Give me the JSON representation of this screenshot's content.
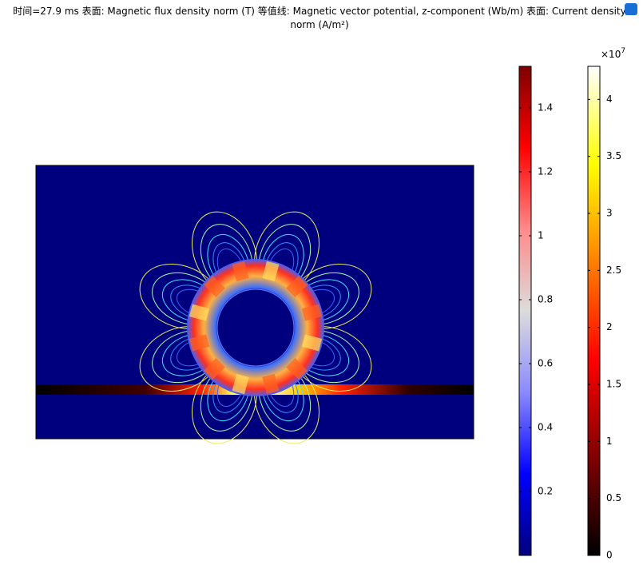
{
  "chart_data": {
    "type": "field",
    "title": "时间=27.9 ms  表面: Magnetic flux density norm (T)  等值线: Magnetic vector potential, z-component (Wb/m)  表面: Current density norm (A/m²)",
    "colorbars": [
      {
        "ylim": [
          0,
          1.53
        ],
        "yticks": [
          0.2,
          0.4,
          0.6,
          0.8,
          1,
          1.2,
          1.4
        ],
        "colors": [
          "#00007f",
          "#0000ff",
          "#8a8aff",
          "#dcdcdc",
          "#ff8a8a",
          "#ff0000",
          "#7f0000"
        ]
      },
      {
        "ylim": [
          0,
          4.29
        ],
        "yticks": [
          0,
          0.5,
          1,
          1.5,
          2,
          2.5,
          3,
          3.5,
          4
        ],
        "multiplier_label": "×10",
        "multiplier_exponent": 7,
        "colors": [
          "#000000",
          "#800000",
          "#ff0000",
          "#ff8000",
          "#ffff00",
          "#ffffff"
        ]
      }
    ]
  }
}
